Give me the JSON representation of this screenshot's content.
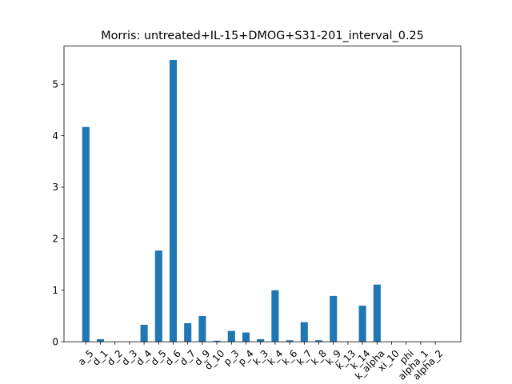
{
  "chart_data": {
    "type": "bar",
    "title": "Morris: untreated+IL-15+DMOG+S31-201_interval_0.25",
    "xlabel": "",
    "ylabel": "",
    "categories": [
      "a_5",
      "d_1",
      "d_2",
      "d_3",
      "d_4",
      "d_5",
      "d_6",
      "d_7",
      "d_9",
      "d_10",
      "p_3",
      "p_4",
      "k_3",
      "k_4",
      "k_6",
      "k_7",
      "k_8",
      "k_9",
      "k_13",
      "k_14",
      "k_alpha",
      "xi_10",
      "phi",
      "alpha_1",
      "alpha_2"
    ],
    "values": [
      4.17,
      0.05,
      0.0,
      0.0,
      0.33,
      1.77,
      5.47,
      0.36,
      0.5,
      0.02,
      0.21,
      0.18,
      0.05,
      1.0,
      0.03,
      0.38,
      0.03,
      0.89,
      0.0,
      0.7,
      1.11,
      0.0,
      0.0,
      0.0,
      0.0
    ],
    "ylim": [
      0,
      5.74
    ],
    "yticks": [
      0,
      1,
      2,
      3,
      4,
      5
    ],
    "grid": false,
    "bar_color": "#1f77b4"
  }
}
